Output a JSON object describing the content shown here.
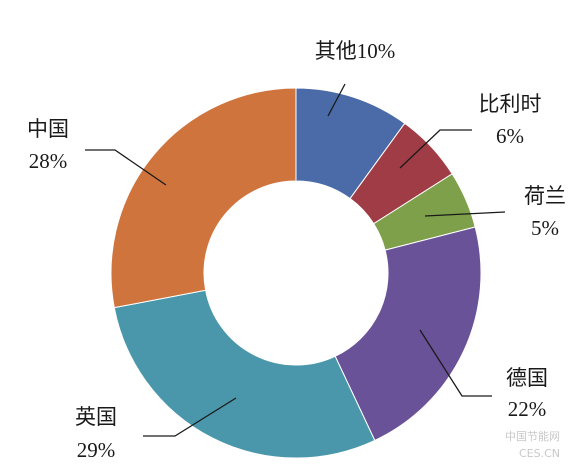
{
  "chart_data": {
    "type": "donut",
    "categories": [
      "其他",
      "比利时",
      "荷兰",
      "德国",
      "英国",
      "中国"
    ],
    "values": [
      10,
      6,
      5,
      22,
      29,
      28
    ],
    "value_labels": [
      "10%",
      "6%",
      "5%",
      "22%",
      "29%",
      "28%"
    ],
    "colors": [
      "#4a6aa8",
      "#a03c46",
      "#7ea04a",
      "#6a5298",
      "#4a97ab",
      "#d0743e"
    ]
  },
  "watermark": {
    "name": "中国节能网",
    "site": "CES.CN"
  }
}
